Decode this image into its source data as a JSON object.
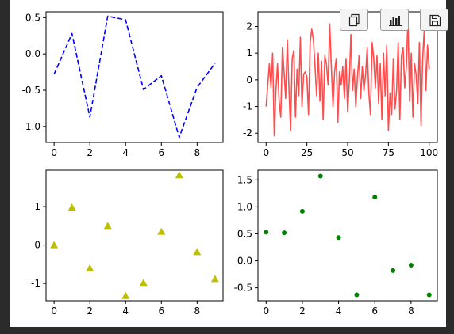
{
  "toolbar": {
    "buttons": [
      {
        "icon": "copy-icon"
      },
      {
        "icon": "bar-chart-icon"
      },
      {
        "icon": "save-icon"
      }
    ]
  },
  "chart_data": [
    {
      "type": "line",
      "title": "",
      "xlabel": "",
      "ylabel": "",
      "x": [
        0,
        1,
        2,
        3,
        4,
        5,
        6,
        7,
        8,
        9
      ],
      "series": [
        {
          "values": [
            -0.28,
            0.28,
            -0.87,
            0.52,
            0.47,
            -0.49,
            -0.3,
            -1.15,
            -0.46,
            -0.13
          ]
        }
      ],
      "line_style": "dashed",
      "color": "#0000ff",
      "xlim": [
        -0.45,
        9.45
      ],
      "ylim": [
        -1.22,
        0.58
      ],
      "xticks": [
        0,
        2,
        4,
        6,
        8
      ],
      "xtick_labels": [
        "0",
        "2",
        "4",
        "6",
        "8"
      ],
      "yticks": [
        -1.0,
        -0.5,
        0.0,
        0.5
      ],
      "ytick_labels": [
        "-1.0",
        "-0.5",
        "0.0",
        "0.5"
      ]
    },
    {
      "type": "line",
      "title": "",
      "xlabel": "",
      "ylabel": "",
      "x_start": 0,
      "x_step": 1,
      "series": [
        {
          "values": [
            -1.0,
            -0.2,
            0.6,
            -0.3,
            1.0,
            -2.1,
            -0.4,
            0.6,
            -0.8,
            -1.4,
            1.2,
            0.3,
            -0.7,
            1.5,
            -0.3,
            -1.9,
            0.8,
            1.1,
            -1.4,
            0.4,
            -0.6,
            1.6,
            -1.0,
            0.2,
            0.3,
            0.1,
            -1.3,
            1.4,
            1.9,
            1.5,
            0.5,
            -0.6,
            1.0,
            -0.8,
            0.7,
            -1.5,
            0.9,
            0.6,
            -0.2,
            2.1,
            0.5,
            -1.0,
            0.3,
            0.8,
            -1.6,
            0.3,
            -0.2,
            0.5,
            -0.7,
            0.8,
            -1.2,
            -0.1,
            1.7,
            -0.4,
            0.4,
            -1.0,
            0.1,
            0.9,
            -0.7,
            0.5,
            -0.4,
            0.2,
            1.2,
            -0.5,
            -1.3,
            1.4,
            0.8,
            -0.3,
            0.9,
            -0.9,
            0.6,
            -1.5,
            1.0,
            -0.6,
            1.3,
            -1.9,
            -0.5,
            -1.3,
            0.8,
            -1.1,
            -0.4,
            1.4,
            -1.5,
            0.9,
            1.2,
            -0.3,
            0.5,
            2.3,
            -0.8,
            1.0,
            -1.4,
            0.6,
            0.2,
            -0.9,
            1.4,
            -1.7,
            0.8,
            1.9,
            -0.4,
            1.3,
            0.4
          ]
        }
      ],
      "color": "#ff4d4d",
      "xlim": [
        -5,
        105
      ],
      "ylim": [
        -2.35,
        2.55
      ],
      "xticks": [
        0,
        25,
        50,
        75,
        100
      ],
      "xtick_labels": [
        "0",
        "25",
        "50",
        "75",
        "100"
      ],
      "yticks": [
        -2,
        -1,
        0,
        1,
        2
      ],
      "ytick_labels": [
        "-2",
        "-1",
        "0",
        "1",
        "2"
      ]
    },
    {
      "type": "scatter",
      "title": "",
      "xlabel": "",
      "ylabel": "",
      "x": [
        0,
        1,
        2,
        3,
        4,
        5,
        6,
        7,
        8,
        9
      ],
      "series": [
        {
          "values": [
            0.0,
            0.98,
            -0.6,
            0.5,
            -1.32,
            -0.98,
            0.35,
            1.82,
            -0.18,
            -0.88
          ]
        }
      ],
      "marker": "triangle",
      "color": "#bfbf00",
      "xlim": [
        -0.45,
        9.45
      ],
      "ylim": [
        -1.45,
        1.95
      ],
      "xticks": [
        0,
        2,
        4,
        6,
        8
      ],
      "xtick_labels": [
        "0",
        "2",
        "4",
        "6",
        "8"
      ],
      "yticks": [
        -1,
        0,
        1
      ],
      "ytick_labels": [
        "-1",
        "0",
        "1"
      ]
    },
    {
      "type": "scatter",
      "title": "",
      "xlabel": "",
      "ylabel": "",
      "x": [
        0,
        1,
        2,
        3,
        4,
        5,
        6,
        7,
        8,
        9
      ],
      "series": [
        {
          "values": [
            0.53,
            0.52,
            0.92,
            1.57,
            0.43,
            -0.63,
            1.18,
            -0.18,
            -0.08,
            -0.63
          ]
        }
      ],
      "marker": "circle",
      "color": "#008000",
      "xlim": [
        -0.45,
        9.45
      ],
      "ylim": [
        -0.74,
        1.68
      ],
      "xticks": [
        0,
        2,
        4,
        6,
        8
      ],
      "xtick_labels": [
        "0",
        "2",
        "4",
        "6",
        "8"
      ],
      "yticks": [
        -0.5,
        0.0,
        0.5,
        1.0,
        1.5
      ],
      "ytick_labels": [
        "-0.5",
        "0.0",
        "0.5",
        "1.0",
        "1.5"
      ]
    }
  ]
}
